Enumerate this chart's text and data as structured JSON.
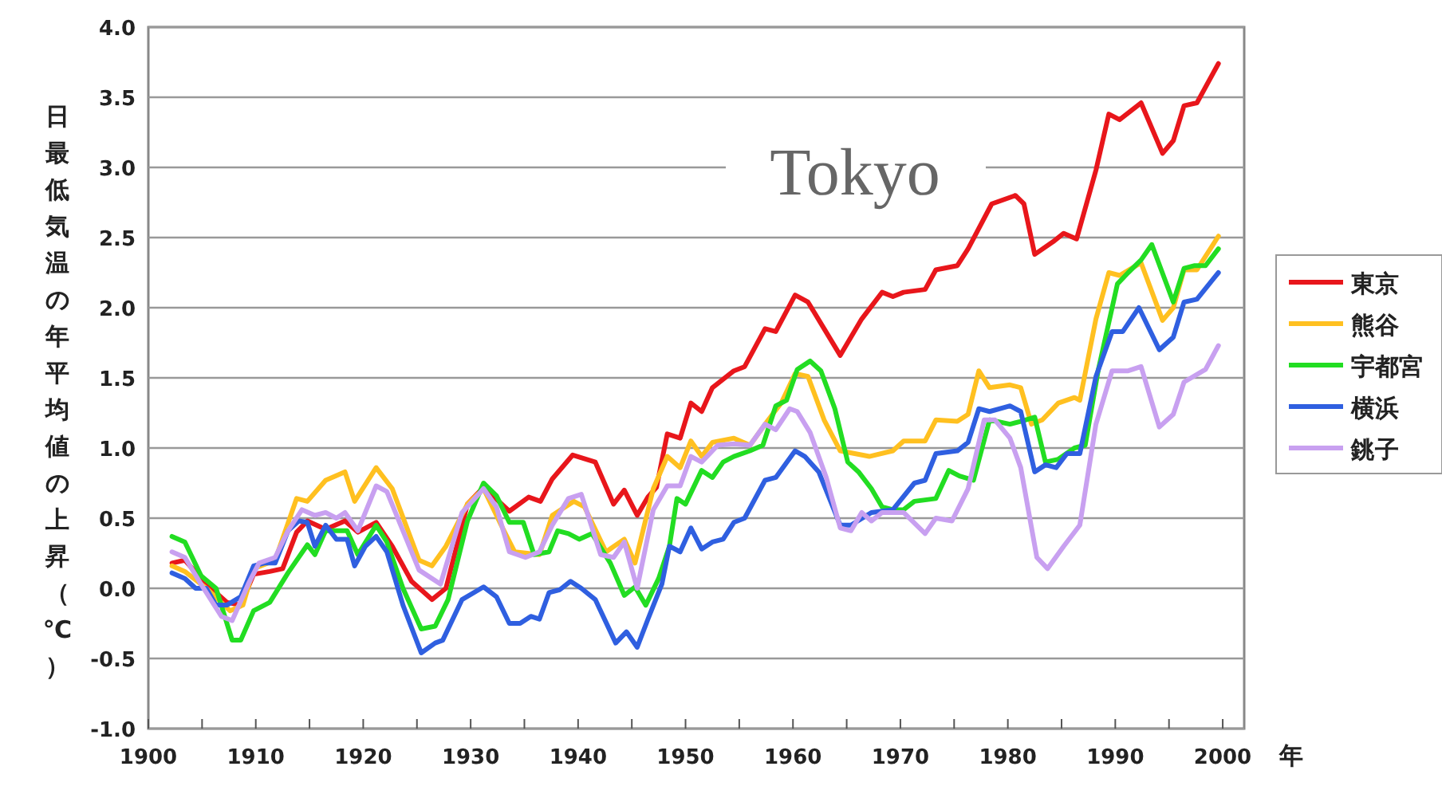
{
  "chart_data": {
    "type": "line",
    "ylabel": "日最低気温の年平均値の上昇（℃）",
    "xlabel": "年",
    "annotations": [
      "Tokyo"
    ],
    "xlim": [
      1900,
      2002
    ],
    "xticks": [
      1900,
      {
        "value": 1905,
        "label": null
      },
      1910,
      {
        "value": 1915,
        "label": null
      },
      1920,
      {
        "value": 1925,
        "label": null
      },
      1930,
      {
        "value": 1935,
        "label": null
      },
      1940,
      {
        "value": 1945,
        "label": null
      },
      1950,
      {
        "value": 1955,
        "label": null
      },
      1960,
      {
        "value": 1965,
        "label": null
      },
      1970,
      {
        "value": 1975,
        "label": null
      },
      1980,
      {
        "value": 1985,
        "label": null
      },
      1990,
      {
        "value": 1995,
        "label": null
      },
      2000
    ],
    "ylim": [
      -1,
      4
    ],
    "yticks": [
      {
        "value": -1,
        "label": "-1.0"
      },
      {
        "value": -0.5,
        "label": "-0.5"
      },
      {
        "value": 0,
        "label": "0.0"
      },
      {
        "value": 0.5,
        "label": "0.5"
      },
      {
        "value": 1,
        "label": "1.0"
      },
      {
        "value": 1.5,
        "label": "1.5"
      },
      {
        "value": 2,
        "label": "2.0"
      },
      {
        "value": 2.5,
        "label": "2.5"
      },
      {
        "value": 3,
        "label": "3.0"
      },
      {
        "value": 3.5,
        "label": "3.5"
      },
      {
        "value": 4,
        "label": "4.0"
      }
    ],
    "grid": "y",
    "legend": "right",
    "line_style": "solid",
    "series": [
      {
        "name": "東京",
        "color": "#e8161b",
        "x": [
          1902.2,
          1903.4,
          1905.4,
          1907.3,
          1908.6,
          1909.8,
          1911.3,
          1912.5,
          1913.8,
          1914.8,
          1916.5,
          1918.3,
          1919.5,
          1921.2,
          1922.7,
          1924.5,
          1926.4,
          1927.7,
          1929.7,
          1931.2,
          1933.6,
          1935.4,
          1936.5,
          1937.6,
          1939.5,
          1941.6,
          1943.3,
          1944.3,
          1945.5,
          1946.5,
          1947.3,
          1948.3,
          1949.5,
          1950.5,
          1951.5,
          1952.5,
          1954.5,
          1955.5,
          1957.4,
          1958.4,
          1960.2,
          1961.4,
          1962.9,
          1964.4,
          1966.4,
          1968.3,
          1969.3,
          1970.3,
          1972.3,
          1973.3,
          1975.3,
          1976.3,
          1978.5,
          1980.7,
          1981.5,
          1982.5,
          1984.2,
          1985.2,
          1986.4,
          1988.2,
          1989.4,
          1990.4,
          1992.4,
          1994.4,
          1995.4,
          1996.4,
          1997.6,
          1999.6
        ],
        "values": [
          0.18,
          0.2,
          0.03,
          -0.1,
          -0.12,
          0.1,
          0.12,
          0.14,
          0.4,
          0.48,
          0.42,
          0.48,
          0.4,
          0.47,
          0.3,
          0.05,
          -0.08,
          0,
          0.6,
          0.72,
          0.55,
          0.65,
          0.62,
          0.78,
          0.95,
          0.9,
          0.6,
          0.7,
          0.52,
          0.65,
          0.72,
          1.1,
          1.07,
          1.32,
          1.26,
          1.43,
          1.55,
          1.58,
          1.85,
          1.83,
          2.09,
          2.04,
          1.85,
          1.66,
          1.92,
          2.11,
          2.08,
          2.11,
          2.13,
          2.27,
          2.3,
          2.42,
          2.74,
          2.8,
          2.74,
          2.38,
          2.47,
          2.53,
          2.49,
          2.98,
          3.38,
          3.34,
          3.46,
          3.1,
          3.19,
          3.44,
          3.46,
          3.74
        ]
      },
      {
        "name": "熊谷",
        "color": "#ffc020",
        "x": [
          1902.2,
          1903.4,
          1905.4,
          1907.6,
          1908.8,
          1909.8,
          1911.8,
          1913.8,
          1914.8,
          1916.5,
          1918.3,
          1919.2,
          1921.2,
          1922.7,
          1925.2,
          1926.4,
          1927.7,
          1929.7,
          1931.2,
          1933.1,
          1934.1,
          1936.4,
          1937.6,
          1939.6,
          1940.6,
          1942.6,
          1944.3,
          1945.3,
          1947,
          1948.3,
          1949.5,
          1950.5,
          1951.5,
          1952.5,
          1954.5,
          1956,
          1957.7,
          1958.9,
          1960.2,
          1961.4,
          1962.9,
          1964.4,
          1967.1,
          1969.3,
          1970.3,
          1972.3,
          1973.3,
          1975.3,
          1976.3,
          1977.3,
          1978.3,
          1980.2,
          1981.2,
          1982.2,
          1983.2,
          1984.7,
          1986.2,
          1986.7,
          1988.2,
          1989.4,
          1990.4,
          1992.4,
          1994.4,
          1995.4,
          1996.4,
          1997.6,
          1999.6
        ],
        "values": [
          0.16,
          0.12,
          0,
          -0.16,
          -0.12,
          0.14,
          0.2,
          0.64,
          0.62,
          0.77,
          0.83,
          0.62,
          0.86,
          0.71,
          0.2,
          0.16,
          0.3,
          0.6,
          0.71,
          0.41,
          0.26,
          0.24,
          0.52,
          0.62,
          0.58,
          0.26,
          0.35,
          0.18,
          0.71,
          0.94,
          0.86,
          1.05,
          0.94,
          1.04,
          1.07,
          1.02,
          1.2,
          1.32,
          1.53,
          1.51,
          1.2,
          0.98,
          0.94,
          0.98,
          1.05,
          1.05,
          1.2,
          1.19,
          1.24,
          1.55,
          1.43,
          1.45,
          1.43,
          1.17,
          1.2,
          1.32,
          1.36,
          1.34,
          1.92,
          2.25,
          2.23,
          2.32,
          1.91,
          2,
          2.27,
          2.27,
          2.51
        ]
      },
      {
        "name": "宇都宮",
        "color": "#22dd22",
        "x": [
          1902.2,
          1903.4,
          1904.9,
          1906.3,
          1907.8,
          1908.6,
          1909.8,
          1911.3,
          1913,
          1914.8,
          1915.5,
          1916.5,
          1917.8,
          1918.5,
          1919.5,
          1921.2,
          1922.2,
          1923.7,
          1925.4,
          1926.7,
          1927.9,
          1929.7,
          1931.2,
          1932.4,
          1933.6,
          1934.9,
          1935.9,
          1937.3,
          1938.1,
          1939.1,
          1940.1,
          1941.3,
          1943,
          1944.3,
          1945.3,
          1946.3,
          1947.5,
          1948.5,
          1949.2,
          1950,
          1951.5,
          1952.5,
          1953.5,
          1954.5,
          1956,
          1957.2,
          1958.4,
          1959.4,
          1960.4,
          1961.6,
          1962.6,
          1963.9,
          1965.1,
          1966.1,
          1967.3,
          1968.3,
          1969.3,
          1970.3,
          1971.3,
          1973.3,
          1974.5,
          1975.5,
          1976.8,
          1978.3,
          1980.2,
          1981.2,
          1982.5,
          1983.5,
          1984.7,
          1986.2,
          1987.2,
          1988.4,
          1990.2,
          1991.2,
          1992.4,
          1993.4,
          1995.4,
          1996.4,
          1997.4,
          1998.4,
          1999.6
        ],
        "values": [
          0.37,
          0.33,
          0.09,
          0,
          -0.37,
          -0.37,
          -0.16,
          -0.1,
          0.11,
          0.31,
          0.24,
          0.41,
          0.41,
          0.41,
          0.24,
          0.45,
          0.33,
          0,
          -0.29,
          -0.27,
          -0.08,
          0.48,
          0.75,
          0.66,
          0.47,
          0.47,
          0.24,
          0.26,
          0.41,
          0.39,
          0.35,
          0.39,
          0.18,
          -0.05,
          0.01,
          -0.12,
          0.07,
          0.3,
          0.64,
          0.6,
          0.84,
          0.79,
          0.9,
          0.94,
          0.98,
          1.02,
          1.3,
          1.34,
          1.56,
          1.62,
          1.55,
          1.28,
          0.9,
          0.83,
          0.71,
          0.58,
          0.56,
          0.56,
          0.62,
          0.64,
          0.84,
          0.8,
          0.77,
          1.2,
          1.17,
          1.19,
          1.22,
          0.9,
          0.92,
          1,
          1.02,
          1.55,
          2.17,
          2.25,
          2.34,
          2.45,
          2.04,
          2.28,
          2.3,
          2.3,
          2.42
        ]
      },
      {
        "name": "横浜",
        "color": "#2f5fe0",
        "x": [
          1902.2,
          1903.4,
          1904.4,
          1905.4,
          1906.3,
          1907.3,
          1908.6,
          1909.8,
          1910.8,
          1911.8,
          1913,
          1914,
          1914.8,
          1915.5,
          1916.5,
          1917.5,
          1918.5,
          1919.2,
          1920.2,
          1921.2,
          1922.2,
          1923.7,
          1925.4,
          1926.7,
          1927.4,
          1929.2,
          1931.2,
          1932.4,
          1933.6,
          1934.6,
          1935.6,
          1936.4,
          1937.3,
          1938.3,
          1939.3,
          1940.3,
          1941.6,
          1943.5,
          1944.5,
          1945.5,
          1946.5,
          1947.8,
          1948.5,
          1949.5,
          1950.5,
          1951.5,
          1952.5,
          1953.5,
          1954.5,
          1955.5,
          1957.4,
          1958.4,
          1960.2,
          1961.1,
          1962.4,
          1964.4,
          1965.4,
          1967.3,
          1969.3,
          1971.3,
          1972.3,
          1973.3,
          1975.3,
          1976.3,
          1977.3,
          1978.3,
          1980.2,
          1981.2,
          1982.5,
          1983.5,
          1984.5,
          1985.5,
          1986.7,
          1988.2,
          1989.7,
          1990.7,
          1992.2,
          1994.1,
          1995.4,
          1996.4,
          1997.6,
          1999.6
        ],
        "values": [
          0.11,
          0.07,
          0,
          0,
          -0.12,
          -0.12,
          -0.06,
          0.16,
          0.18,
          0.18,
          0.41,
          0.48,
          0.47,
          0.3,
          0.45,
          0.35,
          0.35,
          0.16,
          0.3,
          0.37,
          0.26,
          -0.12,
          -0.46,
          -0.39,
          -0.37,
          -0.08,
          0.01,
          -0.06,
          -0.25,
          -0.25,
          -0.2,
          -0.22,
          -0.03,
          -0.01,
          0.05,
          0,
          -0.08,
          -0.39,
          -0.31,
          -0.42,
          -0.22,
          0.03,
          0.3,
          0.26,
          0.43,
          0.28,
          0.33,
          0.35,
          0.47,
          0.5,
          0.77,
          0.79,
          0.98,
          0.94,
          0.83,
          0.45,
          0.45,
          0.54,
          0.56,
          0.75,
          0.77,
          0.96,
          0.98,
          1.04,
          1.28,
          1.26,
          1.3,
          1.26,
          0.83,
          0.88,
          0.86,
          0.96,
          0.96,
          1.51,
          1.83,
          1.83,
          2,
          1.7,
          1.79,
          2.04,
          2.06,
          2.25
        ]
      },
      {
        "name": "銚子",
        "color": "#c8a0f0",
        "x": [
          1902.2,
          1903.4,
          1904.9,
          1906.8,
          1907.8,
          1909.3,
          1910.3,
          1911.8,
          1913,
          1914.3,
          1915.5,
          1916.5,
          1917.5,
          1918.3,
          1919.5,
          1921.2,
          1922.2,
          1923.7,
          1925.2,
          1927.2,
          1929.2,
          1931.2,
          1932.4,
          1933.6,
          1935.1,
          1936.4,
          1937.6,
          1939.1,
          1940.3,
          1942.1,
          1943.3,
          1944.3,
          1945.5,
          1947,
          1948.3,
          1949.5,
          1950.5,
          1951.5,
          1953,
          1954.5,
          1956,
          1957.4,
          1958.4,
          1959.7,
          1960.4,
          1961.6,
          1963.1,
          1964.4,
          1965.4,
          1966.4,
          1967.3,
          1968.3,
          1970.3,
          1972.3,
          1973.3,
          1974.8,
          1976.3,
          1977.8,
          1978.8,
          1980.2,
          1981.2,
          1982.7,
          1983.7,
          1985.2,
          1986.7,
          1988.2,
          1989.7,
          1991.2,
          1992.4,
          1994.1,
          1995.4,
          1996.4,
          1998.4,
          1999.6
        ],
        "values": [
          0.26,
          0.22,
          0.03,
          -0.2,
          -0.23,
          0.03,
          0.18,
          0.22,
          0.41,
          0.56,
          0.52,
          0.54,
          0.5,
          0.54,
          0.41,
          0.73,
          0.69,
          0.41,
          0.13,
          0.03,
          0.54,
          0.71,
          0.58,
          0.26,
          0.22,
          0.26,
          0.45,
          0.64,
          0.67,
          0.24,
          0.22,
          0.33,
          0,
          0.56,
          0.73,
          0.73,
          0.94,
          0.9,
          1.02,
          1.03,
          1.02,
          1.17,
          1.13,
          1.28,
          1.26,
          1.11,
          0.79,
          0.43,
          0.41,
          0.54,
          0.48,
          0.54,
          0.54,
          0.39,
          0.5,
          0.48,
          0.71,
          1.2,
          1.2,
          1.07,
          0.86,
          0.22,
          0.14,
          0.3,
          0.45,
          1.17,
          1.55,
          1.55,
          1.58,
          1.15,
          1.24,
          1.47,
          1.56,
          1.73
        ]
      }
    ]
  }
}
